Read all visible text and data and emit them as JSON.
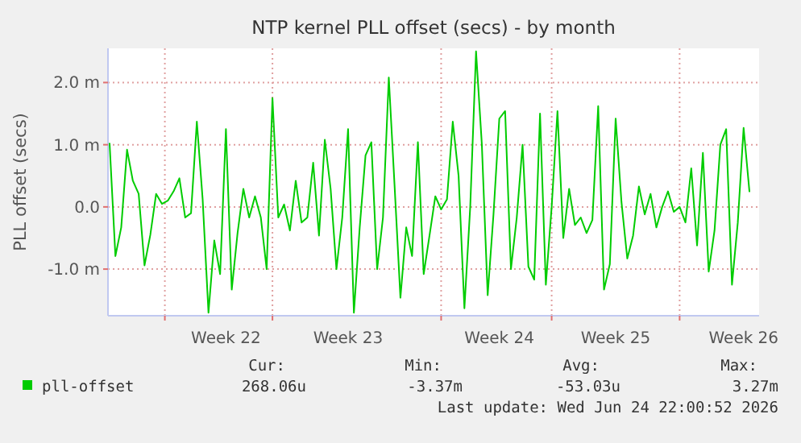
{
  "chart_data": {
    "type": "line",
    "title": "NTP kernel PLL offset (secs) - by month",
    "ylabel": "PLL offset (secs)",
    "categories": [
      null,
      null,
      null,
      null,
      null,
      null,
      null,
      null,
      null,
      null,
      null,
      null,
      null,
      null,
      null,
      null,
      null,
      null,
      null,
      null,
      "Week 22",
      null,
      null,
      null,
      null,
      null,
      null,
      null,
      null,
      null,
      null,
      null,
      null,
      null,
      null,
      null,
      null,
      null,
      null,
      null,
      null,
      "Week 23",
      null,
      null,
      null,
      null,
      null,
      null,
      null,
      null,
      null,
      null,
      null,
      null,
      null,
      null,
      null,
      null,
      null,
      null,
      null,
      null,
      null,
      null,
      null,
      null,
      null,
      "Week 24",
      null,
      null,
      null,
      null,
      null,
      null,
      null,
      null,
      null,
      null,
      null,
      null,
      null,
      null,
      null,
      null,
      null,
      null,
      null,
      "Week 25",
      null,
      null,
      null,
      null,
      null,
      null,
      null,
      null,
      null,
      null,
      null,
      null,
      null,
      null,
      null,
      null,
      null,
      null,
      null,
      null,
      null,
      "Week 26",
      null
    ],
    "series": [
      {
        "name": "pll-offset",
        "color": "#00cc00",
        "values": [
          1.02,
          -0.79,
          -0.33,
          0.92,
          0.42,
          0.21,
          -0.94,
          -0.45,
          0.21,
          0.05,
          0.1,
          0.25,
          0.46,
          -0.17,
          -0.1,
          1.37,
          0.12,
          -1.7,
          -0.54,
          -1.08,
          1.25,
          -1.33,
          -0.42,
          0.29,
          -0.17,
          0.17,
          -0.17,
          -1.0,
          1.75,
          -0.17,
          0.04,
          -0.38,
          0.42,
          -0.25,
          -0.17,
          0.71,
          -0.46,
          1.08,
          0.29,
          -1.0,
          -0.17,
          1.25,
          -1.7,
          -0.33,
          0.83,
          1.04,
          -1.0,
          -0.17,
          2.08,
          0.33,
          -1.46,
          -0.33,
          -0.79,
          1.04,
          -1.08,
          -0.46,
          0.17,
          -0.04,
          0.12,
          1.37,
          0.5,
          -1.63,
          0.0,
          2.5,
          1.0,
          -1.42,
          -0.12,
          1.42,
          1.54,
          -1.0,
          -0.17,
          1.0,
          -0.96,
          -1.17,
          1.5,
          -1.25,
          0.0,
          1.54,
          -0.5,
          0.29,
          -0.29,
          -0.17,
          -0.42,
          -0.21,
          1.62,
          -1.33,
          -0.92,
          1.42,
          0.08,
          -0.83,
          -0.46,
          0.33,
          -0.12,
          0.21,
          -0.33,
          0.0,
          0.25,
          -0.08,
          0.0,
          -0.25,
          0.62,
          -0.62,
          0.87,
          -1.04,
          -0.38,
          1.0,
          1.25,
          -1.25,
          -0.25,
          1.27,
          0.25
        ]
      }
    ],
    "ylim": [
      -1.75,
      2.55
    ],
    "yticks": [
      {
        "value": -1,
        "label": "-1.0 m"
      },
      {
        "value": 0,
        "label": "0.0"
      },
      {
        "value": 1,
        "label": "1.0 m"
      },
      {
        "value": 2,
        "label": "2.0 m"
      }
    ],
    "grid": true,
    "legend": "bottom left",
    "annotations": [
      "Cur:",
      "268.06u",
      "Min:",
      "-3.37m",
      "Avg:",
      "-53.03u",
      "Max:",
      "3.27m",
      "Last update: Wed Jun 24 22:00:52 2026"
    ]
  }
}
